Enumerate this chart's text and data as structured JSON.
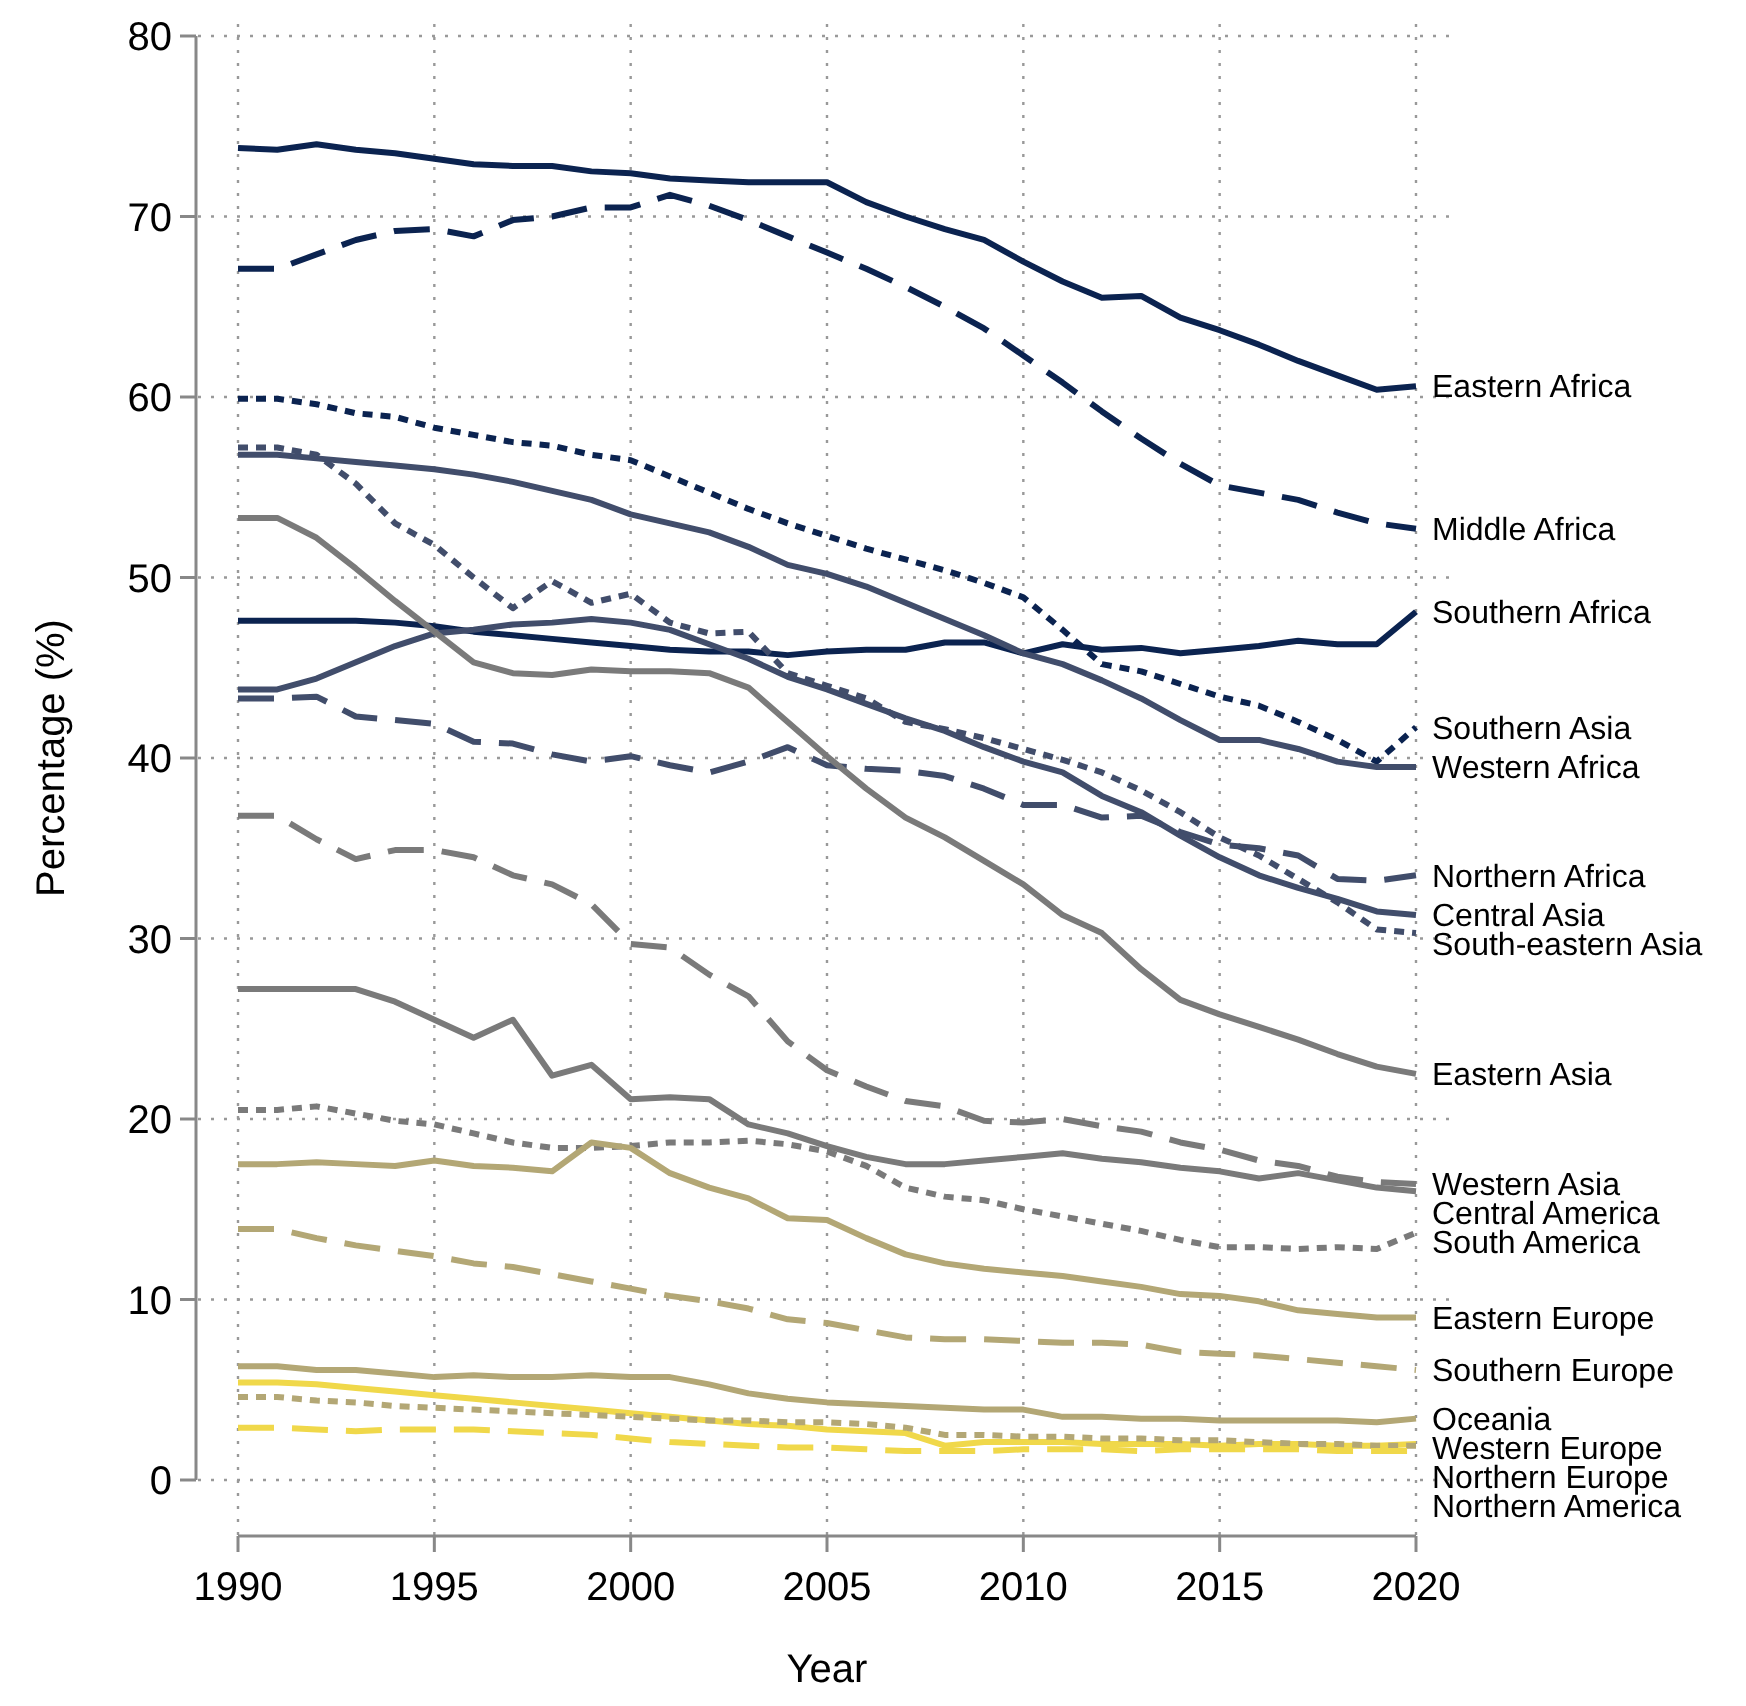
{
  "chart_data": {
    "type": "line",
    "xlabel": "Year",
    "ylabel": "Percentage (%)",
    "x": [
      1990,
      1991,
      1992,
      1993,
      1994,
      1995,
      1996,
      1997,
      1998,
      1999,
      2000,
      2001,
      2002,
      2003,
      2004,
      2005,
      2006,
      2007,
      2008,
      2009,
      2010,
      2011,
      2012,
      2013,
      2014,
      2015,
      2016,
      2017,
      2018,
      2019,
      2020
    ],
    "xlim": [
      1990,
      2020
    ],
    "xticks": [
      1990,
      1995,
      2000,
      2005,
      2010,
      2015,
      2020
    ],
    "ylim": [
      0,
      80
    ],
    "yticks": [
      0,
      10,
      20,
      30,
      40,
      50,
      60,
      70,
      80
    ],
    "grid": true,
    "marker": "none",
    "series": [
      {
        "name": "Eastern Africa",
        "color": "#0b2350",
        "line_style": "solid",
        "values": [
          73.8,
          73.7,
          74.0,
          73.7,
          73.5,
          73.2,
          72.9,
          72.8,
          72.8,
          72.5,
          72.4,
          72.1,
          72.0,
          71.9,
          71.9,
          71.9,
          70.8,
          70.0,
          69.3,
          68.7,
          67.5,
          66.4,
          65.5,
          65.6,
          64.4,
          63.7,
          62.9,
          62.0,
          61.2,
          60.4,
          60.6
        ]
      },
      {
        "name": "Middle Africa",
        "color": "#0b2350",
        "line_style": "dashed",
        "values": [
          67.1,
          67.1,
          67.9,
          68.7,
          69.2,
          69.3,
          68.9,
          69.8,
          70.0,
          70.5,
          70.5,
          71.2,
          70.6,
          69.8,
          68.9,
          68.0,
          67.1,
          66.1,
          65.0,
          63.8,
          62.3,
          60.8,
          59.2,
          57.7,
          56.3,
          55.1,
          54.7,
          54.3,
          53.6,
          53.0,
          52.7
        ]
      },
      {
        "name": "Southern Africa",
        "color": "#0b2350",
        "line_style": "solid",
        "values": [
          47.6,
          47.6,
          47.6,
          47.6,
          47.5,
          47.3,
          47.0,
          46.8,
          46.6,
          46.4,
          46.2,
          46.0,
          45.9,
          45.9,
          45.7,
          45.9,
          46.0,
          46.0,
          46.4,
          46.4,
          45.8,
          46.3,
          46.0,
          46.1,
          45.8,
          46.0,
          46.2,
          46.5,
          46.3,
          46.3,
          48.1
        ]
      },
      {
        "name": "Southern Asia",
        "color": "#0b2350",
        "line_style": "dotted",
        "values": [
          59.9,
          59.9,
          59.6,
          59.1,
          58.9,
          58.3,
          57.9,
          57.5,
          57.3,
          56.8,
          56.5,
          55.6,
          54.7,
          53.8,
          53.0,
          52.3,
          51.6,
          51.0,
          50.4,
          49.7,
          48.9,
          47.1,
          45.2,
          44.8,
          44.1,
          43.4,
          42.9,
          42.0,
          41.0,
          39.8,
          41.7
        ]
      },
      {
        "name": "Western Africa",
        "color": "#414d6b",
        "line_style": "solid",
        "values": [
          56.8,
          56.8,
          56.6,
          56.4,
          56.2,
          56.0,
          55.7,
          55.3,
          54.8,
          54.3,
          53.5,
          53.0,
          52.5,
          51.7,
          50.7,
          50.2,
          49.5,
          48.6,
          47.7,
          46.8,
          45.8,
          45.2,
          44.3,
          43.3,
          42.1,
          41.0,
          41.0,
          40.5,
          39.8,
          39.5,
          39.5
        ]
      },
      {
        "name": "Northern Africa",
        "color": "#414d6b",
        "line_style": "dashed",
        "values": [
          43.3,
          43.3,
          43.4,
          42.3,
          42.1,
          41.9,
          40.9,
          40.8,
          40.2,
          39.8,
          40.1,
          39.6,
          39.2,
          39.8,
          40.6,
          39.6,
          39.4,
          39.3,
          39.0,
          38.3,
          37.4,
          37.4,
          36.7,
          36.8,
          35.9,
          35.2,
          35.0,
          34.6,
          33.3,
          33.2,
          33.5
        ]
      },
      {
        "name": "Central Asia",
        "color": "#414d6b",
        "line_style": "solid",
        "values": [
          43.8,
          43.8,
          44.4,
          45.3,
          46.2,
          46.9,
          47.1,
          47.4,
          47.5,
          47.7,
          47.5,
          47.1,
          46.3,
          45.5,
          44.5,
          43.8,
          43.0,
          42.2,
          41.5,
          40.6,
          39.8,
          39.2,
          37.9,
          37.0,
          35.7,
          34.5,
          33.5,
          32.8,
          32.2,
          31.5,
          31.3
        ]
      },
      {
        "name": "South-eastern Asia",
        "color": "#414d6b",
        "line_style": "dotted",
        "values": [
          57.2,
          57.2,
          56.8,
          55.2,
          53.0,
          51.8,
          50.0,
          48.3,
          49.8,
          48.6,
          49.1,
          47.5,
          46.9,
          47.0,
          44.7,
          44.0,
          43.3,
          42.0,
          41.6,
          41.1,
          40.5,
          39.9,
          39.2,
          38.2,
          37.0,
          35.6,
          34.6,
          33.3,
          32.0,
          30.5,
          30.3
        ]
      },
      {
        "name": "Eastern Asia",
        "color": "#7a7a7a",
        "line_style": "solid",
        "values": [
          53.3,
          53.3,
          52.2,
          50.5,
          48.7,
          47.0,
          45.3,
          44.7,
          44.6,
          44.9,
          44.8,
          44.8,
          44.7,
          43.9,
          42.0,
          40.1,
          38.3,
          36.7,
          35.6,
          34.3,
          33.0,
          31.3,
          30.3,
          28.3,
          26.6,
          25.8,
          25.1,
          24.4,
          23.6,
          22.9,
          22.5
        ]
      },
      {
        "name": "Western Asia",
        "color": "#7a7a7a",
        "line_style": "dashed",
        "values": [
          36.8,
          36.8,
          35.5,
          34.4,
          34.9,
          34.9,
          34.5,
          33.5,
          33.0,
          31.9,
          29.7,
          29.5,
          28.0,
          26.8,
          24.3,
          22.7,
          21.8,
          21.0,
          20.7,
          19.9,
          19.8,
          20.0,
          19.6,
          19.3,
          18.7,
          18.3,
          17.7,
          17.4,
          16.8,
          16.5,
          16.4
        ]
      },
      {
        "name": "Central America",
        "color": "#7a7a7a",
        "line_style": "solid",
        "values": [
          27.2,
          27.2,
          27.2,
          27.2,
          26.5,
          25.5,
          24.5,
          25.5,
          22.4,
          23.0,
          21.1,
          21.2,
          21.1,
          19.7,
          19.2,
          18.5,
          17.9,
          17.5,
          17.5,
          17.7,
          17.9,
          18.1,
          17.8,
          17.6,
          17.3,
          17.1,
          16.7,
          17.0,
          16.6,
          16.2,
          16.0
        ]
      },
      {
        "name": "South America",
        "color": "#7a7a7a",
        "line_style": "dotted",
        "values": [
          20.5,
          20.5,
          20.7,
          20.3,
          19.9,
          19.7,
          19.2,
          18.7,
          18.4,
          18.4,
          18.5,
          18.7,
          18.7,
          18.8,
          18.6,
          18.2,
          17.4,
          16.2,
          15.7,
          15.5,
          15.0,
          14.6,
          14.2,
          13.8,
          13.3,
          12.9,
          12.9,
          12.8,
          12.9,
          12.8,
          13.7
        ]
      },
      {
        "name": "Eastern Europe",
        "color": "#b3a775",
        "line_style": "solid",
        "values": [
          17.5,
          17.5,
          17.6,
          17.5,
          17.4,
          17.7,
          17.4,
          17.3,
          17.1,
          18.7,
          18.4,
          17.0,
          16.2,
          15.6,
          14.5,
          14.4,
          13.4,
          12.5,
          12.0,
          11.7,
          11.5,
          11.3,
          11.0,
          10.7,
          10.3,
          10.2,
          9.9,
          9.4,
          9.2,
          9.0,
          9.0
        ]
      },
      {
        "name": "Southern Europe",
        "color": "#b3a775",
        "line_style": "dashed",
        "values": [
          13.9,
          13.9,
          13.4,
          13.0,
          12.7,
          12.4,
          12.0,
          11.8,
          11.4,
          11.0,
          10.6,
          10.2,
          9.9,
          9.5,
          8.9,
          8.7,
          8.3,
          7.9,
          7.8,
          7.8,
          7.7,
          7.6,
          7.6,
          7.5,
          7.1,
          7.0,
          6.9,
          6.7,
          6.5,
          6.3,
          6.1
        ]
      },
      {
        "name": "Oceania",
        "color": "#b3a775",
        "line_style": "solid",
        "values": [
          6.3,
          6.3,
          6.1,
          6.1,
          5.9,
          5.7,
          5.8,
          5.7,
          5.7,
          5.8,
          5.7,
          5.7,
          5.3,
          4.8,
          4.5,
          4.3,
          4.2,
          4.1,
          4.0,
          3.9,
          3.9,
          3.5,
          3.5,
          3.4,
          3.4,
          3.3,
          3.3,
          3.3,
          3.3,
          3.2,
          3.4
        ]
      },
      {
        "name": "Western Europe",
        "color": "#f0d84a",
        "line_style": "solid",
        "values": [
          5.4,
          5.4,
          5.3,
          5.1,
          4.9,
          4.7,
          4.5,
          4.3,
          4.1,
          3.9,
          3.7,
          3.5,
          3.3,
          3.1,
          3.0,
          2.8,
          2.7,
          2.6,
          1.9,
          2.1,
          2.1,
          2.1,
          2.0,
          2.0,
          2.0,
          1.9,
          2.0,
          2.0,
          1.9,
          1.9,
          2.0
        ]
      },
      {
        "name": "Northern Europe",
        "color": "#b3a775",
        "line_style": "dotted",
        "values": [
          4.6,
          4.6,
          4.4,
          4.3,
          4.1,
          4.0,
          3.9,
          3.8,
          3.7,
          3.6,
          3.5,
          3.4,
          3.3,
          3.3,
          3.2,
          3.2,
          3.1,
          2.9,
          2.5,
          2.5,
          2.4,
          2.4,
          2.3,
          2.3,
          2.2,
          2.2,
          2.1,
          2.0,
          2.0,
          1.9,
          1.9
        ]
      },
      {
        "name": "Northern America",
        "color": "#f0d84a",
        "line_style": "dashed",
        "values": [
          2.9,
          2.9,
          2.8,
          2.7,
          2.8,
          2.8,
          2.8,
          2.7,
          2.6,
          2.5,
          2.3,
          2.1,
          2.0,
          1.9,
          1.8,
          1.8,
          1.7,
          1.6,
          1.6,
          1.6,
          1.7,
          1.7,
          1.7,
          1.6,
          1.7,
          1.7,
          1.7,
          1.7,
          1.6,
          1.6,
          1.6
        ]
      }
    ]
  }
}
